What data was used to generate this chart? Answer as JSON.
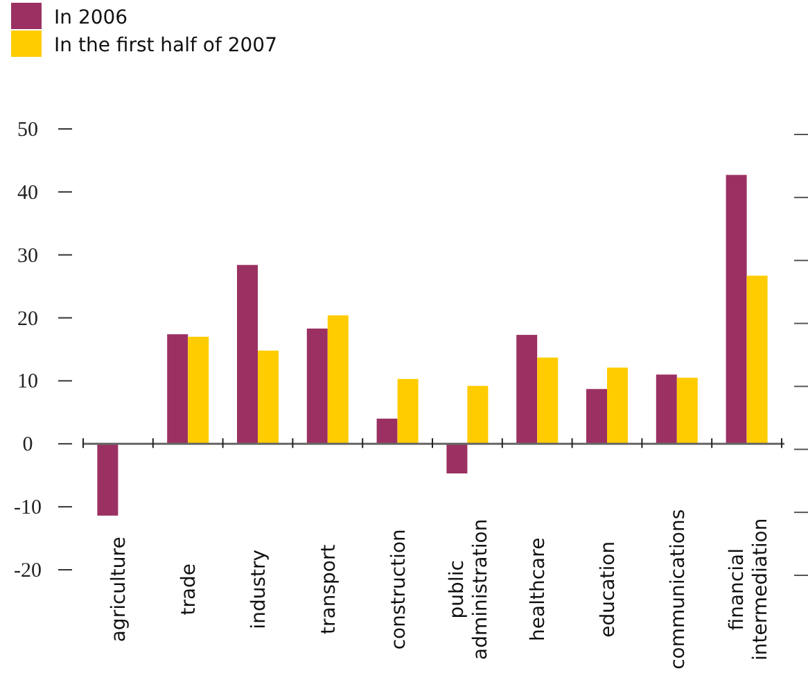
{
  "chart_data": {
    "type": "bar",
    "categories": [
      "agriculture",
      "trade",
      "industry",
      "transport",
      "construction",
      "public administration",
      "healthcare",
      "education",
      "communications",
      "financial intermediation"
    ],
    "series": [
      {
        "name": "In 2006",
        "color": "#9b3163",
        "values": [
          -11.4,
          17.4,
          28.4,
          18.3,
          4.0,
          -4.7,
          17.3,
          8.7,
          11.0,
          42.7
        ]
      },
      {
        "name": "In the first half of 2007",
        "color": "#ffcc00",
        "values": [
          null,
          17.0,
          14.8,
          20.4,
          10.3,
          9.2,
          13.7,
          12.1,
          10.5,
          26.7
        ]
      }
    ],
    "ylim": [
      -20,
      50
    ],
    "yticks": [
      -20,
      -10,
      0,
      10,
      20,
      30,
      40,
      50
    ],
    "legend": "top left"
  }
}
